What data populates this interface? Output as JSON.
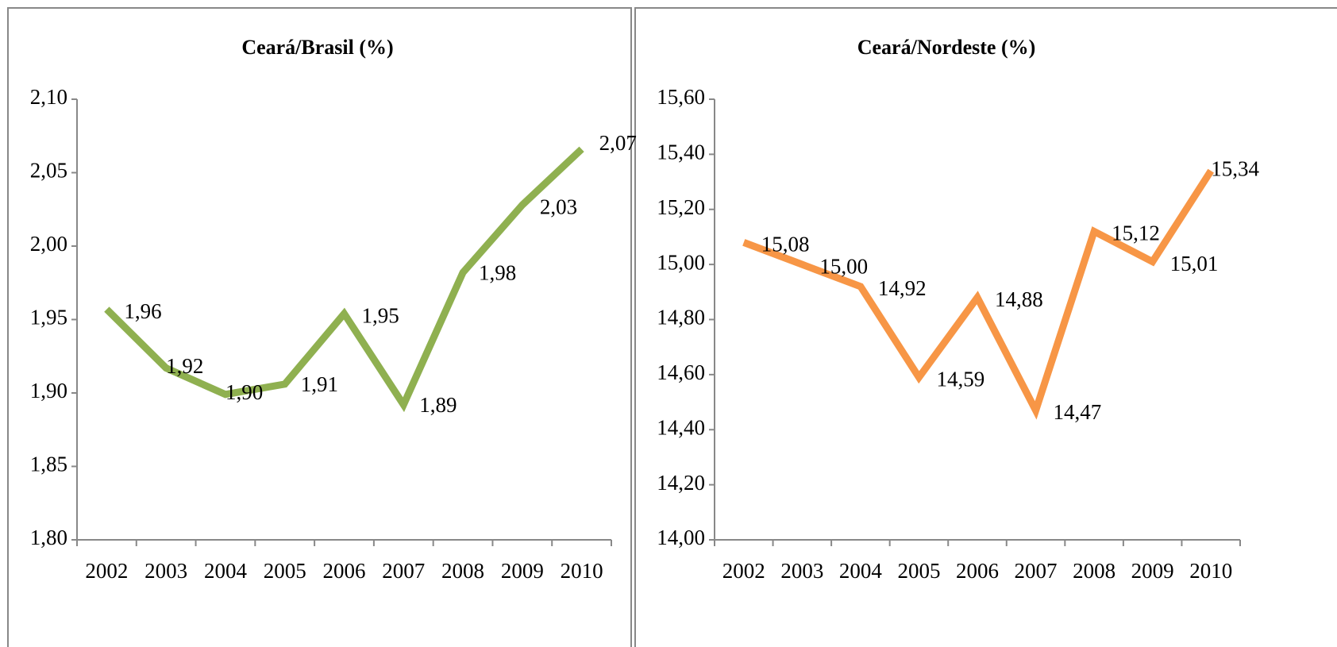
{
  "chart_data": [
    {
      "type": "line",
      "title": "Ceará/Brasil (%)",
      "categories": [
        "2002",
        "2003",
        "2004",
        "2005",
        "2006",
        "2007",
        "2008",
        "2009",
        "2010"
      ],
      "series": [
        {
          "name": "Ceará/Brasil",
          "color": "#8fb050",
          "values": [
            1.957,
            1.917,
            1.899,
            1.906,
            1.954,
            1.892,
            1.982,
            2.028,
            2.066
          ],
          "value_labels": [
            "1,96",
            "1,92",
            "1,90",
            "1,91",
            "1,95",
            "1,89",
            "1,98",
            "2,03",
            "2,07"
          ]
        }
      ],
      "ylim": [
        1.8,
        2.1
      ],
      "yticks": [
        {
          "value": 1.8,
          "label": "1,80"
        },
        {
          "value": 1.85,
          "label": "1,85"
        },
        {
          "value": 1.9,
          "label": "1,90"
        },
        {
          "value": 1.95,
          "label": "1,95"
        },
        {
          "value": 2.0,
          "label": "2,00"
        },
        {
          "value": 2.05,
          "label": "2,05"
        },
        {
          "value": 2.1,
          "label": "2,10"
        }
      ]
    },
    {
      "type": "line",
      "title": "Ceará/Nordeste (%)",
      "categories": [
        "2002",
        "2003",
        "2004",
        "2005",
        "2006",
        "2007",
        "2008",
        "2009",
        "2010"
      ],
      "series": [
        {
          "name": "Ceará/Nordeste",
          "color": "#f79646",
          "values": [
            15.08,
            15.0,
            14.92,
            14.59,
            14.88,
            14.47,
            15.12,
            15.01,
            15.34
          ],
          "value_labels": [
            "15,08",
            "15,00",
            "14,92",
            "14,59",
            "14,88",
            "14,47",
            "15,12",
            "15,01",
            "15,34"
          ]
        }
      ],
      "ylim": [
        14.0,
        15.6
      ],
      "yticks": [
        {
          "value": 14.0,
          "label": "14,00"
        },
        {
          "value": 14.2,
          "label": "14,20"
        },
        {
          "value": 14.4,
          "label": "14,40"
        },
        {
          "value": 14.6,
          "label": "14,60"
        },
        {
          "value": 14.8,
          "label": "14,80"
        },
        {
          "value": 15.0,
          "label": "15,00"
        },
        {
          "value": 15.2,
          "label": "15,20"
        },
        {
          "value": 15.4,
          "label": "15,40"
        },
        {
          "value": 15.6,
          "label": "15,60"
        }
      ]
    }
  ]
}
